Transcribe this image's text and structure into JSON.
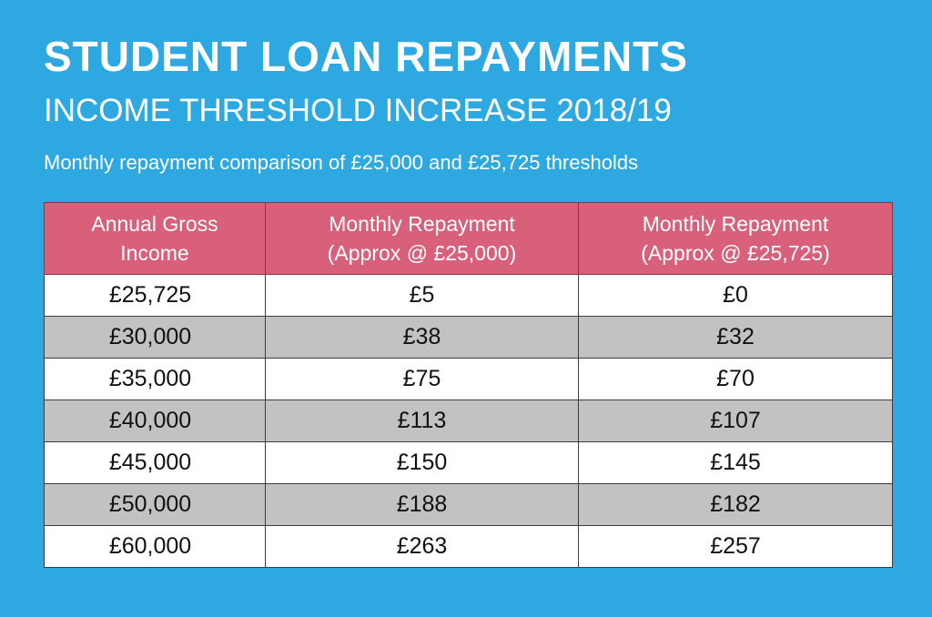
{
  "title": "STUDENT LOAN REPAYMENTS",
  "subtitle": "INCOME THRESHOLD INCREASE 2018/19",
  "caption": "Monthly repayment comparison of £25,000 and £25,725 thresholds",
  "table": {
    "headers": [
      [
        "Annual Gross",
        "Income"
      ],
      [
        "Monthly Repayment",
        "(Approx @ £25,000)"
      ],
      [
        "Monthly Repayment",
        "(Approx @ £25,725)"
      ]
    ],
    "rows": [
      [
        "£25,725",
        "£5",
        "£0"
      ],
      [
        "£30,000",
        "£38",
        "£32"
      ],
      [
        "£35,000",
        "£75",
        "£70"
      ],
      [
        "£40,000",
        "£113",
        "£107"
      ],
      [
        "£45,000",
        "£150",
        "£145"
      ],
      [
        "£50,000",
        "£188",
        "£182"
      ],
      [
        "£60,000",
        "£263",
        "£257"
      ]
    ]
  },
  "colors": {
    "background": "#2ea8e0",
    "header": "#d9607a",
    "row_alt": "#c2c2c2"
  }
}
